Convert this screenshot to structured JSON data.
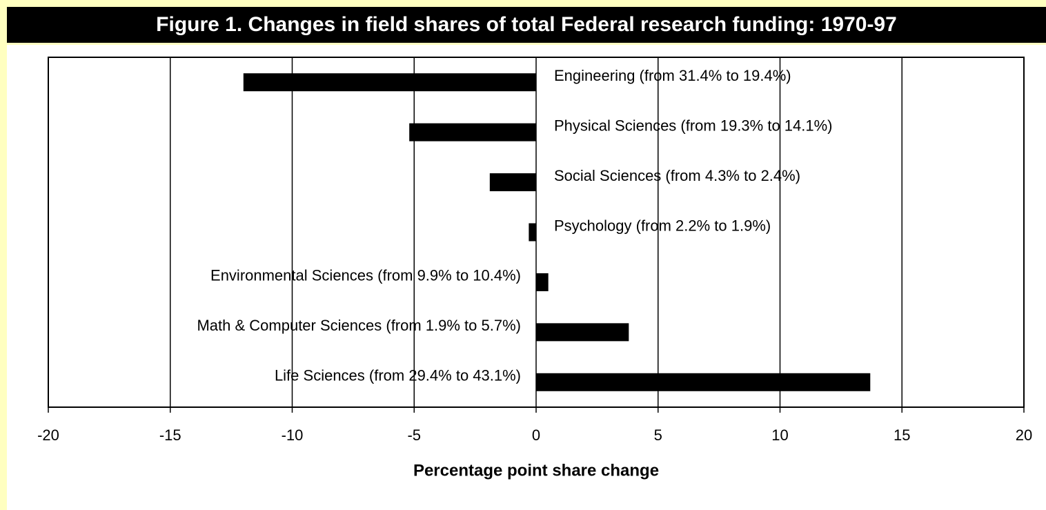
{
  "chart_data": {
    "type": "bar",
    "orientation": "horizontal",
    "title": "Figure 1. Changes in field shares of total Federal research funding: 1970-97",
    "categories": [
      "Engineering (from 31.4% to 19.4%)",
      "Physical Sciences (from 19.3% to 14.1%)",
      "Social Sciences (from 4.3% to 2.4%)",
      "Psychology (from 2.2% to 1.9%)",
      "Environmental Sciences (from 9.9% to 10.4%)",
      "Math & Computer Sciences (from 1.9% to 5.7%)",
      "Life Sciences (from 29.4% to 43.1%)"
    ],
    "values": [
      -12.0,
      -5.2,
      -1.9,
      -0.3,
      0.5,
      3.8,
      13.7
    ],
    "color": "#000000",
    "xlabel": "Percentage point share change",
    "xlim": [
      -20,
      20
    ],
    "xticks": [
      -20,
      -15,
      -10,
      -5,
      0,
      5,
      10,
      15,
      20
    ],
    "grid": true
  }
}
